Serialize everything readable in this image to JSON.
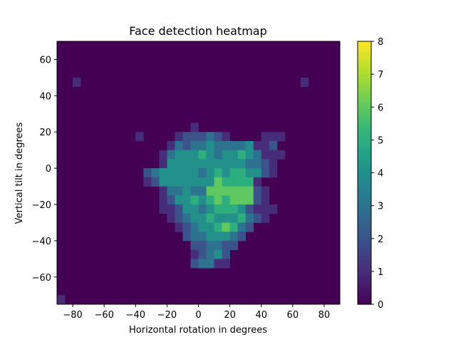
{
  "chart_data": {
    "type": "heatmap",
    "title": "Face detection heatmap",
    "xlabel": "Horizontal rotation in degrees",
    "ylabel": "Vertical tilt in degrees",
    "xlim": [
      -90,
      90
    ],
    "ylim": [
      -75,
      70
    ],
    "cell_width_deg": 5,
    "cell_height_deg": 5,
    "x_ticks": [
      -80,
      -60,
      -40,
      -20,
      0,
      20,
      40,
      60,
      80
    ],
    "y_ticks": [
      -60,
      -40,
      -20,
      0,
      20,
      40,
      60
    ],
    "x_tick_labels": [
      "−80",
      "−60",
      "−40",
      "−20",
      "0",
      "20",
      "40",
      "60",
      "80"
    ],
    "y_tick_labels": [
      "−60",
      "−40",
      "−20",
      "0",
      "20",
      "40",
      "60"
    ],
    "colorbar": {
      "min": 0,
      "max": 8,
      "ticks": [
        0,
        1,
        2,
        3,
        4,
        5,
        6,
        7,
        8
      ],
      "tick_labels": [
        "0",
        "1",
        "2",
        "3",
        "4",
        "5",
        "6",
        "7",
        "8"
      ],
      "colormap": "viridis"
    },
    "background_value": 0,
    "grid": false,
    "rows": [
      {
        "y": 45,
        "cells": [
          {
            "x": -80,
            "v": 1
          },
          {
            "x": 65,
            "v": 1
          }
        ]
      },
      {
        "y": 20,
        "cells": [
          {
            "x": -5,
            "v": 1
          }
        ]
      },
      {
        "y": 15,
        "cells": [
          {
            "x": -40,
            "v": 1
          },
          {
            "x": -15,
            "v": 1
          },
          {
            "x": -10,
            "v": 2
          },
          {
            "x": -5,
            "v": 2
          },
          {
            "x": 0,
            "v": 2
          },
          {
            "x": 5,
            "v": 3
          },
          {
            "x": 10,
            "v": 2
          },
          {
            "x": 15,
            "v": 1
          },
          {
            "x": 40,
            "v": 1
          },
          {
            "x": 45,
            "v": 1
          },
          {
            "x": 50,
            "v": 1
          }
        ]
      },
      {
        "y": 10,
        "cells": [
          {
            "x": -20,
            "v": 1
          },
          {
            "x": -15,
            "v": 3
          },
          {
            "x": -10,
            "v": 2
          },
          {
            "x": -5,
            "v": 3
          },
          {
            "x": 0,
            "v": 3
          },
          {
            "x": 5,
            "v": 4
          },
          {
            "x": 10,
            "v": 3
          },
          {
            "x": 15,
            "v": 3
          },
          {
            "x": 20,
            "v": 3
          },
          {
            "x": 25,
            "v": 3
          },
          {
            "x": 30,
            "v": 4
          },
          {
            "x": 35,
            "v": 1
          },
          {
            "x": 40,
            "v": 1
          },
          {
            "x": 45,
            "v": 2
          }
        ]
      },
      {
        "y": 5,
        "cells": [
          {
            "x": -25,
            "v": 1
          },
          {
            "x": -20,
            "v": 3
          },
          {
            "x": -15,
            "v": 4
          },
          {
            "x": -10,
            "v": 4
          },
          {
            "x": -5,
            "v": 4
          },
          {
            "x": 0,
            "v": 5
          },
          {
            "x": 5,
            "v": 4
          },
          {
            "x": 10,
            "v": 3
          },
          {
            "x": 15,
            "v": 4
          },
          {
            "x": 20,
            "v": 4
          },
          {
            "x": 25,
            "v": 5
          },
          {
            "x": 30,
            "v": 4
          },
          {
            "x": 35,
            "v": 3
          },
          {
            "x": 40,
            "v": 1
          },
          {
            "x": 45,
            "v": 1
          },
          {
            "x": 50,
            "v": 1
          }
        ]
      },
      {
        "y": 0,
        "cells": [
          {
            "x": -25,
            "v": 1
          },
          {
            "x": -20,
            "v": 4
          },
          {
            "x": -15,
            "v": 4
          },
          {
            "x": -10,
            "v": 4
          },
          {
            "x": -5,
            "v": 4
          },
          {
            "x": 0,
            "v": 4
          },
          {
            "x": 5,
            "v": 4
          },
          {
            "x": 10,
            "v": 4
          },
          {
            "x": 15,
            "v": 4
          },
          {
            "x": 20,
            "v": 4
          },
          {
            "x": 25,
            "v": 4
          },
          {
            "x": 30,
            "v": 3
          },
          {
            "x": 35,
            "v": 3
          },
          {
            "x": 40,
            "v": 2
          },
          {
            "x": 45,
            "v": 1
          }
        ]
      },
      {
        "y": -5,
        "cells": [
          {
            "x": -35,
            "v": 2
          },
          {
            "x": -30,
            "v": 3
          },
          {
            "x": -25,
            "v": 4
          },
          {
            "x": -20,
            "v": 4
          },
          {
            "x": -15,
            "v": 4
          },
          {
            "x": -10,
            "v": 4
          },
          {
            "x": -5,
            "v": 4
          },
          {
            "x": 0,
            "v": 3
          },
          {
            "x": 5,
            "v": 4
          },
          {
            "x": 10,
            "v": 5
          },
          {
            "x": 15,
            "v": 4
          },
          {
            "x": 20,
            "v": 5
          },
          {
            "x": 25,
            "v": 5
          },
          {
            "x": 30,
            "v": 4
          },
          {
            "x": 35,
            "v": 4
          },
          {
            "x": 40,
            "v": 2
          },
          {
            "x": 45,
            "v": 1
          }
        ]
      },
      {
        "y": -10,
        "cells": [
          {
            "x": -35,
            "v": 1
          },
          {
            "x": -30,
            "v": 2
          },
          {
            "x": -25,
            "v": 4
          },
          {
            "x": -20,
            "v": 4
          },
          {
            "x": -15,
            "v": 4
          },
          {
            "x": -10,
            "v": 4
          },
          {
            "x": -5,
            "v": 4
          },
          {
            "x": 0,
            "v": 4
          },
          {
            "x": 5,
            "v": 4
          },
          {
            "x": 10,
            "v": 6
          },
          {
            "x": 15,
            "v": 5
          },
          {
            "x": 20,
            "v": 5
          },
          {
            "x": 25,
            "v": 5
          },
          {
            "x": 30,
            "v": 5
          },
          {
            "x": 35,
            "v": 1
          }
        ]
      },
      {
        "y": -15,
        "cells": [
          {
            "x": -25,
            "v": 1
          },
          {
            "x": -20,
            "v": 3
          },
          {
            "x": -15,
            "v": 3
          },
          {
            "x": -10,
            "v": 4
          },
          {
            "x": -5,
            "v": 3
          },
          {
            "x": 0,
            "v": 3
          },
          {
            "x": 5,
            "v": 6
          },
          {
            "x": 10,
            "v": 6
          },
          {
            "x": 15,
            "v": 6
          },
          {
            "x": 20,
            "v": 6
          },
          {
            "x": 25,
            "v": 6
          },
          {
            "x": 30,
            "v": 6
          },
          {
            "x": 35,
            "v": 2
          },
          {
            "x": 40,
            "v": 1
          }
        ]
      },
      {
        "y": -20,
        "cells": [
          {
            "x": -25,
            "v": 1
          },
          {
            "x": -20,
            "v": 2
          },
          {
            "x": -15,
            "v": 4
          },
          {
            "x": -10,
            "v": 4
          },
          {
            "x": -5,
            "v": 5
          },
          {
            "x": 0,
            "v": 4
          },
          {
            "x": 5,
            "v": 5
          },
          {
            "x": 10,
            "v": 6
          },
          {
            "x": 15,
            "v": 5
          },
          {
            "x": 20,
            "v": 6
          },
          {
            "x": 25,
            "v": 6
          },
          {
            "x": 30,
            "v": 6
          },
          {
            "x": 35,
            "v": 2
          },
          {
            "x": 40,
            "v": 1
          }
        ]
      },
      {
        "y": -25,
        "cells": [
          {
            "x": -25,
            "v": 1
          },
          {
            "x": -20,
            "v": 1
          },
          {
            "x": -15,
            "v": 2
          },
          {
            "x": -10,
            "v": 4
          },
          {
            "x": -5,
            "v": 4
          },
          {
            "x": 0,
            "v": 3
          },
          {
            "x": 5,
            "v": 4
          },
          {
            "x": 10,
            "v": 5
          },
          {
            "x": 15,
            "v": 5
          },
          {
            "x": 20,
            "v": 5
          },
          {
            "x": 25,
            "v": 4
          },
          {
            "x": 30,
            "v": 2
          },
          {
            "x": 35,
            "v": 1
          },
          {
            "x": 40,
            "v": 1
          },
          {
            "x": 45,
            "v": 1
          }
        ]
      },
      {
        "y": -30,
        "cells": [
          {
            "x": -20,
            "v": 1
          },
          {
            "x": -15,
            "v": 2
          },
          {
            "x": -10,
            "v": 3
          },
          {
            "x": -5,
            "v": 4
          },
          {
            "x": 0,
            "v": 4
          },
          {
            "x": 5,
            "v": 5
          },
          {
            "x": 10,
            "v": 4
          },
          {
            "x": 15,
            "v": 4
          },
          {
            "x": 20,
            "v": 4
          },
          {
            "x": 25,
            "v": 5
          },
          {
            "x": 30,
            "v": 3
          },
          {
            "x": 35,
            "v": 2
          },
          {
            "x": 40,
            "v": 1
          }
        ]
      },
      {
        "y": -35,
        "cells": [
          {
            "x": -15,
            "v": 1
          },
          {
            "x": -10,
            "v": 2
          },
          {
            "x": -5,
            "v": 3
          },
          {
            "x": 0,
            "v": 4
          },
          {
            "x": 5,
            "v": 4
          },
          {
            "x": 10,
            "v": 5
          },
          {
            "x": 15,
            "v": 6
          },
          {
            "x": 20,
            "v": 5
          },
          {
            "x": 25,
            "v": 3
          },
          {
            "x": 30,
            "v": 2
          }
        ]
      },
      {
        "y": -40,
        "cells": [
          {
            "x": -10,
            "v": 2
          },
          {
            "x": -5,
            "v": 3
          },
          {
            "x": 0,
            "v": 3
          },
          {
            "x": 5,
            "v": 4
          },
          {
            "x": 10,
            "v": 4
          },
          {
            "x": 15,
            "v": 4
          },
          {
            "x": 20,
            "v": 3
          },
          {
            "x": 25,
            "v": 2
          }
        ]
      },
      {
        "y": -45,
        "cells": [
          {
            "x": -5,
            "v": 2
          },
          {
            "x": 0,
            "v": 2
          },
          {
            "x": 5,
            "v": 3
          },
          {
            "x": 10,
            "v": 3
          },
          {
            "x": 15,
            "v": 2
          },
          {
            "x": 20,
            "v": 2
          }
        ]
      },
      {
        "y": -50,
        "cells": [
          {
            "x": -5,
            "v": 1
          },
          {
            "x": 0,
            "v": 2
          },
          {
            "x": 5,
            "v": 3
          },
          {
            "x": 10,
            "v": 4
          },
          {
            "x": 15,
            "v": 2
          }
        ]
      },
      {
        "y": -55,
        "cells": [
          {
            "x": -5,
            "v": 2
          },
          {
            "x": 0,
            "v": 3
          },
          {
            "x": 5,
            "v": 3
          },
          {
            "x": 10,
            "v": 1
          },
          {
            "x": 15,
            "v": 1
          }
        ]
      },
      {
        "y": -75,
        "cells": [
          {
            "x": -90,
            "v": 1
          }
        ]
      }
    ]
  }
}
